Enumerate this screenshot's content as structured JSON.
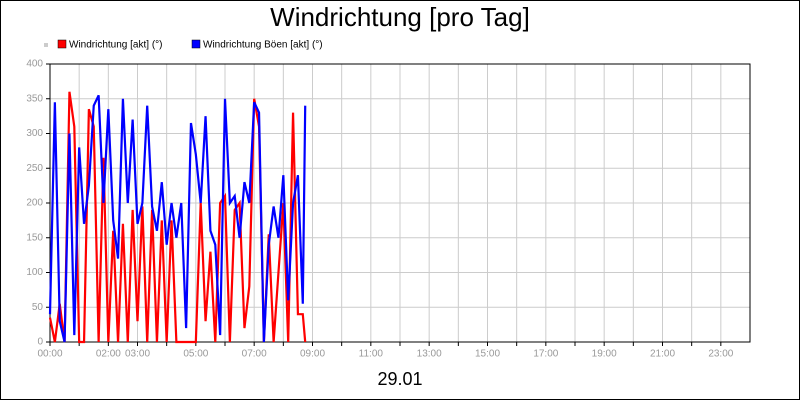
{
  "chart_data": {
    "type": "line",
    "title": "Windrichtung [pro Tag]",
    "xlabel": "29.01",
    "x": [
      0,
      0.167,
      0.333,
      0.5,
      0.667,
      0.833,
      1.0,
      1.167,
      1.333,
      1.5,
      1.667,
      1.833,
      2.0,
      2.167,
      2.333,
      2.5,
      2.667,
      2.833,
      3.0,
      3.167,
      3.333,
      3.5,
      3.667,
      3.833,
      4.0,
      4.167,
      4.333,
      4.5,
      4.667,
      4.833,
      5.0,
      5.167,
      5.333,
      5.5,
      5.667,
      5.833,
      6.0,
      6.167,
      6.333,
      6.5,
      6.667,
      6.833,
      7.0,
      7.167,
      7.333,
      7.5,
      7.667,
      7.833,
      8.0,
      8.167,
      8.333,
      8.5,
      8.667,
      8.75
    ],
    "series": [
      {
        "name": "Windrichtung [akt] (°)",
        "color": "#ff0000",
        "values": [
          35,
          0,
          55,
          0,
          360,
          310,
          0,
          0,
          335,
          310,
          0,
          265,
          0,
          160,
          0,
          170,
          0,
          190,
          30,
          195,
          0,
          190,
          0,
          175,
          0,
          175,
          0,
          0,
          0,
          0,
          0,
          200,
          30,
          130,
          0,
          200,
          210,
          0,
          190,
          200,
          20,
          80,
          350,
          310,
          0,
          155,
          0,
          100,
          200,
          0,
          330,
          40,
          40,
          0
        ]
      },
      {
        "name": "Windrichtung Böen [akt] (°)",
        "color": "#0000ff",
        "values": [
          40,
          345,
          30,
          0,
          300,
          10,
          280,
          170,
          225,
          340,
          355,
          200,
          335,
          175,
          120,
          350,
          200,
          320,
          170,
          200,
          340,
          195,
          160,
          230,
          140,
          200,
          150,
          200,
          20,
          315,
          270,
          200,
          325,
          160,
          140,
          10,
          350,
          200,
          210,
          150,
          230,
          200,
          345,
          330,
          0,
          140,
          195,
          150,
          240,
          60,
          200,
          240,
          55,
          340
        ]
      }
    ],
    "xlim": [
      0,
      24
    ],
    "xticks": [
      {
        "value": 0,
        "label": "00:00"
      },
      {
        "value": 1,
        "label": null
      },
      {
        "value": 2,
        "label": "02:00"
      },
      {
        "value": 3,
        "label": "03:00"
      },
      {
        "value": 4,
        "label": null
      },
      {
        "value": 5,
        "label": "05:00"
      },
      {
        "value": 6,
        "label": null
      },
      {
        "value": 7,
        "label": "07:00"
      },
      {
        "value": 8,
        "label": null
      },
      {
        "value": 9,
        "label": "09:00"
      },
      {
        "value": 10,
        "label": null
      },
      {
        "value": 11,
        "label": "11:00"
      },
      {
        "value": 12,
        "label": null
      },
      {
        "value": 13,
        "label": "13:00"
      },
      {
        "value": 14,
        "label": null
      },
      {
        "value": 15,
        "label": "15:00"
      },
      {
        "value": 16,
        "label": null
      },
      {
        "value": 17,
        "label": "17:00"
      },
      {
        "value": 18,
        "label": null
      },
      {
        "value": 19,
        "label": "19:00"
      },
      {
        "value": 20,
        "label": null
      },
      {
        "value": 21,
        "label": "21:00"
      },
      {
        "value": 22,
        "label": null
      },
      {
        "value": 23,
        "label": "23:00"
      }
    ],
    "ylim": [
      0,
      400
    ],
    "yticks": [
      0,
      50,
      100,
      150,
      200,
      250,
      300,
      350,
      400
    ],
    "grid": true
  }
}
